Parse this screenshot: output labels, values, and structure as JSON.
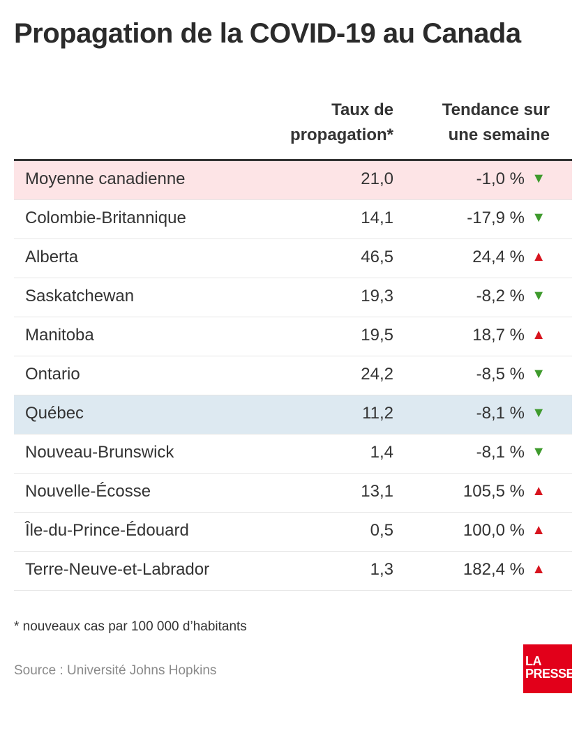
{
  "title": "Propagation de la COVID-19 au Canada",
  "chart_data": {
    "type": "table",
    "columns": [
      "",
      "Taux de propagation*",
      "Tendance sur une semaine"
    ],
    "header_lines": {
      "rate": [
        "Taux de",
        "propagation*"
      ],
      "trend": [
        "Tendance sur",
        "une semaine"
      ]
    },
    "rows": [
      {
        "name": "Moyenne canadienne",
        "rate": "21,0",
        "trend": "-1,0 %",
        "direction": "down",
        "highlight": "average"
      },
      {
        "name": "Colombie-Britannique",
        "rate": "14,1",
        "trend": "-17,9 %",
        "direction": "down"
      },
      {
        "name": "Alberta",
        "rate": "46,5",
        "trend": "24,4 %",
        "direction": "up"
      },
      {
        "name": "Saskatchewan",
        "rate": "19,3",
        "trend": "-8,2 %",
        "direction": "down"
      },
      {
        "name": "Manitoba",
        "rate": "19,5",
        "trend": "18,7 %",
        "direction": "up"
      },
      {
        "name": "Ontario",
        "rate": "24,2",
        "trend": "-8,5 %",
        "direction": "down"
      },
      {
        "name": "Québec",
        "rate": "11,2",
        "trend": "-8,1 %",
        "direction": "down",
        "highlight": "quebec"
      },
      {
        "name": "Nouveau-Brunswick",
        "rate": "1,4",
        "trend": "-8,1 %",
        "direction": "down"
      },
      {
        "name": "Nouvelle-Écosse",
        "rate": "13,1",
        "trend": "105,5 %",
        "direction": "up"
      },
      {
        "name": "Île-du-Prince-Édouard",
        "rate": "0,5",
        "trend": "100,0 %",
        "direction": "up"
      },
      {
        "name": "Terre-Neuve-et-Labrador",
        "rate": "1,3",
        "trend": "182,4 %",
        "direction": "up"
      }
    ]
  },
  "colors": {
    "up": "#d7141e",
    "down": "#3e9a2c",
    "average_bg": "#fde4e6",
    "quebec_bg": "#dde9f1",
    "logo": "#e2001a"
  },
  "footnote": "* nouveaux cas par 100 000 d’habitants",
  "source": "Source : Université Johns Hopkins",
  "logo": {
    "line1": "LA",
    "line2": "PRESSE"
  }
}
